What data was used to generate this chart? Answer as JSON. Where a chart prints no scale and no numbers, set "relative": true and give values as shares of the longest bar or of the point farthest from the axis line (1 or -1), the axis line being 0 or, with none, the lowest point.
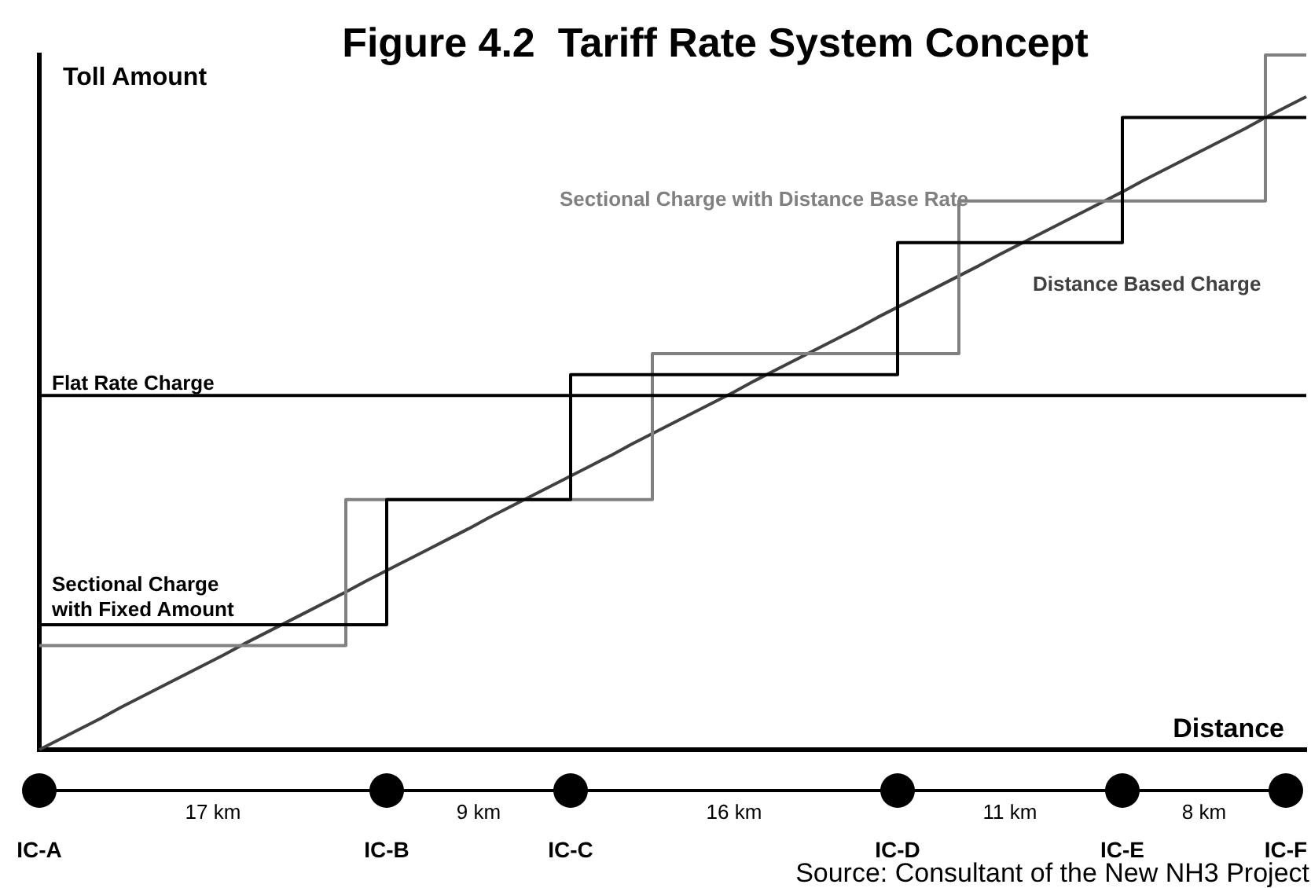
{
  "chart_data": {
    "type": "line",
    "title": "Figure 4.2  Tariff Rate System Concept",
    "xlabel": "Distance",
    "ylabel": "Toll Amount",
    "relative": true,
    "tick_labels": "x",
    "marker": "none",
    "categories": [
      "IC-A",
      null,
      null,
      null,
      null,
      null,
      null,
      null,
      null,
      null,
      null,
      null,
      null,
      null,
      null,
      null,
      null,
      "IC-B",
      null,
      null,
      null,
      null,
      null,
      null,
      null,
      null,
      "IC-C",
      null,
      null,
      null,
      null,
      null,
      null,
      null,
      null,
      null,
      null,
      null,
      null,
      null,
      null,
      null,
      "IC-D",
      null,
      null,
      null,
      null,
      null,
      null,
      null,
      null,
      null,
      null,
      "IC-E",
      null,
      null,
      null,
      null,
      null,
      null,
      null,
      "IC-F",
      null
    ],
    "series": [
      {
        "name": "Flat Rate Charge",
        "type": "line",
        "color": "#000000",
        "values": [
          0.51,
          0.51,
          0.51,
          0.51,
          0.51,
          0.51,
          0.51,
          0.51,
          0.51,
          0.51,
          0.51,
          0.51,
          0.51,
          0.51,
          0.51,
          0.51,
          0.51,
          0.51,
          0.51,
          0.51,
          0.51,
          0.51,
          0.51,
          0.51,
          0.51,
          0.51,
          0.51,
          0.51,
          0.51,
          0.51,
          0.51,
          0.51,
          0.51,
          0.51,
          0.51,
          0.51,
          0.51,
          0.51,
          0.51,
          0.51,
          0.51,
          0.51,
          0.51,
          0.51,
          0.51,
          0.51,
          0.51,
          0.51,
          0.51,
          0.51,
          0.51,
          0.51,
          0.51,
          0.51,
          0.51,
          0.51,
          0.51,
          0.51,
          0.51,
          0.51,
          0.51,
          0.51,
          0.51
        ]
      },
      {
        "name": "Sectional Charge with Fixed Amount",
        "type": "step",
        "color": "#000000",
        "values": [
          0.18,
          0.18,
          0.18,
          0.18,
          0.18,
          0.18,
          0.18,
          0.18,
          0.18,
          0.18,
          0.18,
          0.18,
          0.18,
          0.18,
          0.18,
          0.18,
          0.18,
          0.36,
          0.36,
          0.36,
          0.36,
          0.36,
          0.36,
          0.36,
          0.36,
          0.36,
          0.54,
          0.54,
          0.54,
          0.54,
          0.54,
          0.54,
          0.54,
          0.54,
          0.54,
          0.54,
          0.54,
          0.54,
          0.54,
          0.54,
          0.54,
          0.54,
          0.73,
          0.73,
          0.73,
          0.73,
          0.73,
          0.73,
          0.73,
          0.73,
          0.73,
          0.73,
          0.73,
          0.91,
          0.91,
          0.91,
          0.91,
          0.91,
          0.91,
          0.91,
          0.91,
          0.91,
          0.91
        ]
      },
      {
        "name": "Sectional Charge with Distance Base Rate",
        "type": "step",
        "color": "#808080",
        "values": [
          0.15,
          0.15,
          0.15,
          0.15,
          0.15,
          0.15,
          0.15,
          0.15,
          0.15,
          0.15,
          0.15,
          0.15,
          0.15,
          0.15,
          0.15,
          0.36,
          0.36,
          0.36,
          0.36,
          0.36,
          0.36,
          0.36,
          0.36,
          0.36,
          0.36,
          0.36,
          0.36,
          0.36,
          0.36,
          0.36,
          0.57,
          0.57,
          0.57,
          0.57,
          0.57,
          0.57,
          0.57,
          0.57,
          0.57,
          0.57,
          0.57,
          0.57,
          0.57,
          0.57,
          0.57,
          0.79,
          0.79,
          0.79,
          0.79,
          0.79,
          0.79,
          0.79,
          0.79,
          0.79,
          0.79,
          0.79,
          0.79,
          0.79,
          0.79,
          0.79,
          1,
          1,
          1
        ]
      },
      {
        "name": "Distance Based Charge",
        "type": "line",
        "color": "#404040",
        "values": [
          0,
          0.015,
          0.03,
          0.045,
          0.061,
          0.076,
          0.091,
          0.106,
          0.121,
          0.136,
          0.152,
          0.167,
          0.182,
          0.197,
          0.212,
          0.227,
          0.243,
          0.258,
          0.273,
          0.288,
          0.303,
          0.318,
          0.334,
          0.349,
          0.364,
          0.379,
          0.394,
          0.409,
          0.424,
          0.44,
          0.455,
          0.47,
          0.485,
          0.5,
          0.515,
          0.531,
          0.546,
          0.561,
          0.576,
          0.591,
          0.606,
          0.622,
          0.637,
          0.652,
          0.667,
          0.682,
          0.697,
          0.713,
          0.728,
          0.743,
          0.758,
          0.773,
          0.788,
          0.803,
          0.819,
          0.834,
          0.849,
          0.864,
          0.879,
          0.894,
          0.91,
          0.925,
          0.94
        ]
      }
    ],
    "annotations": [
      "17 km",
      "9 km",
      "16 km",
      "11 km",
      "8 km",
      "Source: Consultant of the New NH3 Project"
    ]
  }
}
